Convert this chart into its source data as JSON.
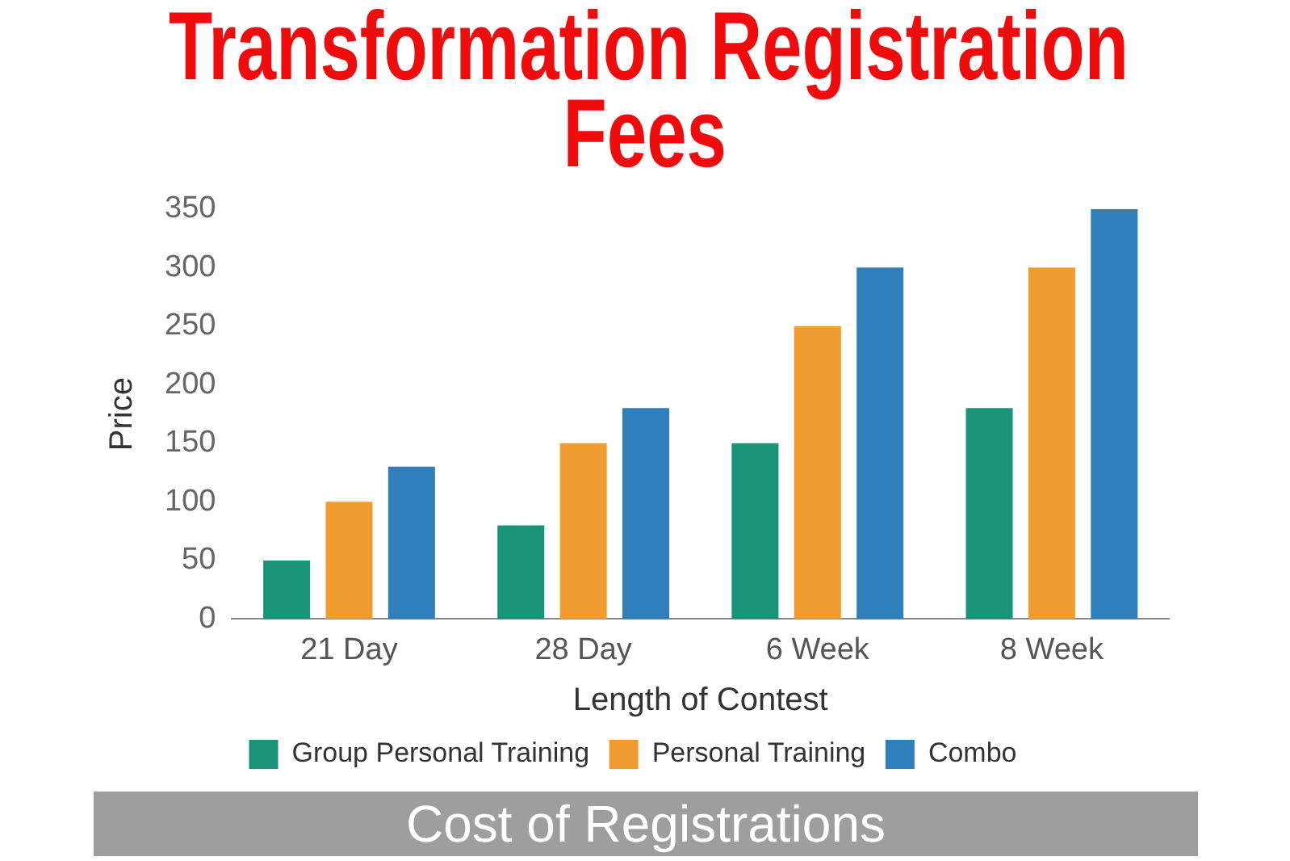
{
  "chart_data": {
    "type": "bar",
    "title": "Transformation Registration Fees",
    "xlabel": "Length of Contest",
    "ylabel": "Price",
    "categories": [
      "21 Day",
      "28 Day",
      "6 Week",
      "8 Week"
    ],
    "series": [
      {
        "name": "Group Personal Training",
        "color": "#1a9479",
        "values": [
          50,
          80,
          150,
          180
        ]
      },
      {
        "name": "Personal Training",
        "color": "#f09c30",
        "values": [
          100,
          150,
          250,
          300
        ]
      },
      {
        "name": "Combo",
        "color": "#2f7fbd",
        "values": [
          130,
          180,
          300,
          350
        ]
      }
    ],
    "ylim": [
      0,
      350
    ],
    "yticks": [
      0,
      50,
      100,
      150,
      200,
      250,
      300,
      350
    ],
    "legend": "bottom",
    "annotations": [
      "Cost of Registrations"
    ]
  }
}
